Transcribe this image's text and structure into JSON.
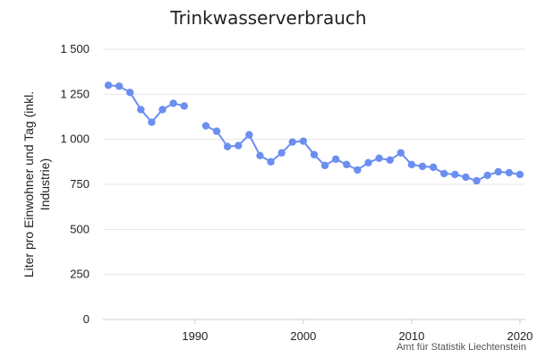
{
  "chart_data": {
    "type": "line",
    "title": "Trinkwasserverbrauch",
    "xlabel": "",
    "ylabel": "Liter pro Einwohner und Tag (inkl. Industrie)",
    "ylim": [
      0,
      1500
    ],
    "xlim": [
      1981.5,
      2020.5
    ],
    "yticks": [
      0,
      250,
      500,
      750,
      1000,
      1250,
      1500
    ],
    "ytick_labels": [
      "0",
      "250",
      "500",
      "750",
      "1 000",
      "1 250",
      "1 500"
    ],
    "xticks": [
      1990,
      2000,
      2010,
      2020
    ],
    "xtick_labels": [
      "1990",
      "2000",
      "2010",
      "2020"
    ],
    "grid": true,
    "series": [
      {
        "color": "#6b8ff0",
        "points": [
          [
            1982,
            1300
          ],
          [
            1983,
            1295
          ],
          [
            1984,
            1260
          ],
          [
            1985,
            1165
          ],
          [
            1986,
            1095
          ],
          [
            1987,
            1165
          ],
          [
            1988,
            1200
          ],
          [
            1989,
            1185
          ],
          [
            1990,
            null
          ],
          [
            1991,
            1075
          ],
          [
            1992,
            1045
          ],
          [
            1993,
            960
          ],
          [
            1994,
            965
          ],
          [
            1995,
            1025
          ],
          [
            1996,
            910
          ],
          [
            1997,
            875
          ],
          [
            1998,
            925
          ],
          [
            1999,
            985
          ],
          [
            2000,
            990
          ],
          [
            2001,
            915
          ],
          [
            2002,
            855
          ],
          [
            2003,
            890
          ],
          [
            2004,
            860
          ],
          [
            2005,
            830
          ],
          [
            2006,
            870
          ],
          [
            2007,
            895
          ],
          [
            2008,
            885
          ],
          [
            2009,
            925
          ],
          [
            2010,
            860
          ],
          [
            2011,
            850
          ],
          [
            2012,
            845
          ],
          [
            2013,
            810
          ],
          [
            2014,
            805
          ],
          [
            2015,
            790
          ],
          [
            2016,
            770
          ],
          [
            2017,
            800
          ],
          [
            2018,
            820
          ],
          [
            2019,
            815
          ],
          [
            2020,
            805
          ]
        ]
      }
    ]
  },
  "source": "Amt für Statistik Liechtenstein"
}
